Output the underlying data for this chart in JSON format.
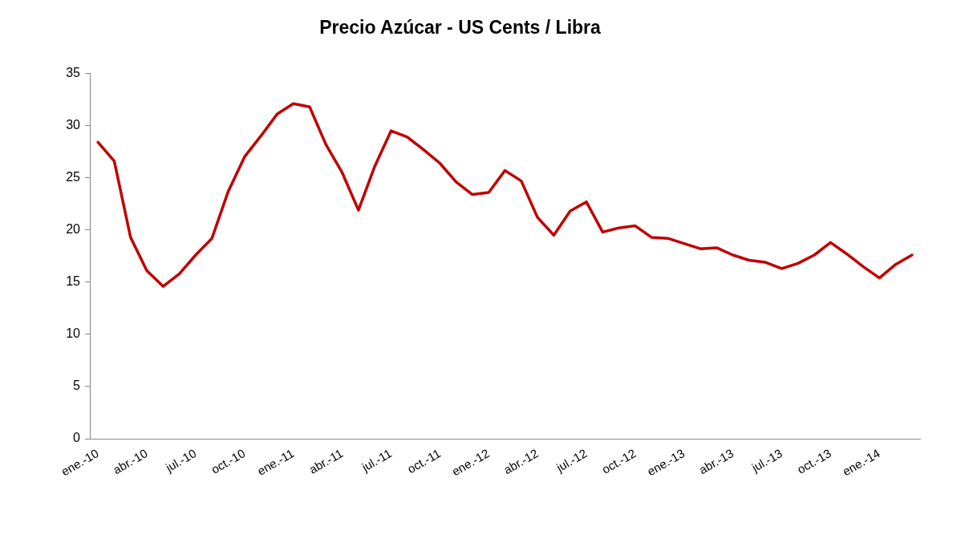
{
  "chart_data": {
    "type": "line",
    "title": "Precio Azúcar - US Cents / Libra",
    "categories": [
      "ene.-10",
      null,
      null,
      "abr.-10",
      null,
      null,
      "jul.-10",
      null,
      null,
      "oct.-10",
      null,
      null,
      "ene.-11",
      null,
      null,
      "abr.-11",
      null,
      null,
      "jul.-11",
      null,
      null,
      "oct.-11",
      null,
      null,
      "ene.-12",
      null,
      null,
      "abr.-12",
      null,
      null,
      "jul.-12",
      null,
      null,
      "oct.-12",
      null,
      null,
      "ene.-13",
      null,
      null,
      "abr.-13",
      null,
      null,
      "jul.-13",
      null,
      null,
      "oct.-13",
      null,
      null,
      "ene.-14",
      null,
      null
    ],
    "series": [
      {
        "color": "#c00000",
        "values": [
          28.4,
          26.6,
          19.3,
          16.1,
          14.6,
          15.8,
          17.6,
          19.2,
          23.7,
          27,
          29.0,
          31.1,
          32.1,
          31.8,
          28.2,
          25.5,
          21.9,
          26.1,
          29.5,
          28.9,
          27.7,
          26.4,
          24.6,
          23.4,
          23.6,
          25.7,
          24.7,
          21.2,
          19.5,
          21.8,
          22.7,
          19.8,
          20.2,
          20.4,
          19.3,
          19.2,
          18.7,
          18.2,
          18.3,
          17.6,
          17.1,
          16.9,
          16.3,
          16.8,
          17.6,
          18.8,
          17.7,
          16.5,
          15.4,
          16.7,
          17.6
        ]
      }
    ],
    "ylim": [
      0,
      35
    ],
    "yticks": [
      0,
      5,
      10,
      15,
      20,
      25,
      30,
      35
    ],
    "marker": "none",
    "line_style": "solid"
  }
}
